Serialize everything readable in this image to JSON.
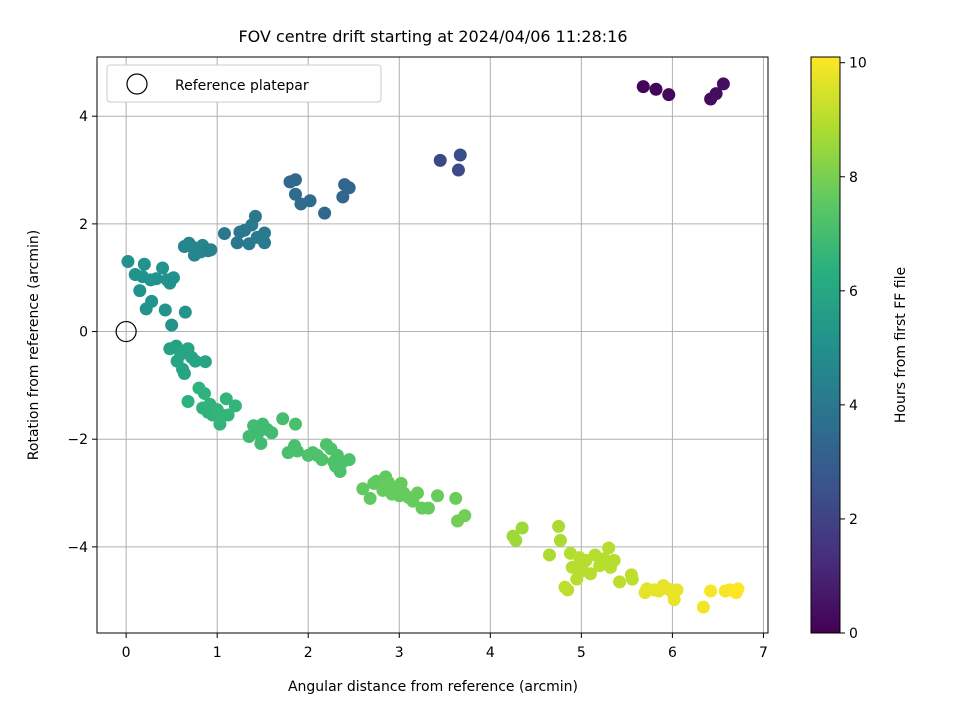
{
  "chart_data": {
    "type": "scatter",
    "title": "FOV centre drift starting at 2024/04/06 11:28:16",
    "xlabel": "Angular distance from reference (arcmin)",
    "ylabel": "Rotation from reference (arcmin)",
    "xlim": [
      -0.32,
      7.05
    ],
    "ylim": [
      -5.6,
      5.1
    ],
    "xticks": [
      "0",
      "1",
      "2",
      "3",
      "4",
      "5",
      "6",
      "7"
    ],
    "yticks": [
      "−4",
      "−2",
      "0",
      "2",
      "4"
    ],
    "grid": true,
    "legend": {
      "position": "top-left",
      "entries": [
        "Reference platepar"
      ]
    },
    "reference_point": {
      "x": 0,
      "y": 0
    },
    "colorbar": {
      "label": "Hours from first FF file",
      "range": [
        0,
        10.1
      ],
      "ticks": [
        "0",
        "2",
        "4",
        "6",
        "8",
        "10"
      ],
      "colormap": "viridis"
    },
    "points": [
      {
        "x": 5.68,
        "y": 4.55,
        "c": 0.1
      },
      {
        "x": 5.82,
        "y": 4.5,
        "c": 0.15
      },
      {
        "x": 5.96,
        "y": 4.4,
        "c": 0.2
      },
      {
        "x": 6.42,
        "y": 4.32,
        "c": 0.3
      },
      {
        "x": 6.48,
        "y": 4.42,
        "c": 0.35
      },
      {
        "x": 6.56,
        "y": 4.6,
        "c": 0.4
      },
      {
        "x": 3.45,
        "y": 3.18,
        "c": 2.2
      },
      {
        "x": 3.65,
        "y": 3.0,
        "c": 2.3
      },
      {
        "x": 3.67,
        "y": 3.28,
        "c": 2.4
      },
      {
        "x": 1.8,
        "y": 2.78,
        "c": 3.4
      },
      {
        "x": 1.86,
        "y": 2.82,
        "c": 3.4
      },
      {
        "x": 1.86,
        "y": 2.55,
        "c": 3.5
      },
      {
        "x": 1.92,
        "y": 2.37,
        "c": 3.5
      },
      {
        "x": 2.02,
        "y": 2.43,
        "c": 3.5
      },
      {
        "x": 2.18,
        "y": 2.2,
        "c": 3.4
      },
      {
        "x": 2.38,
        "y": 2.5,
        "c": 3.3
      },
      {
        "x": 2.4,
        "y": 2.73,
        "c": 3.3
      },
      {
        "x": 2.45,
        "y": 2.67,
        "c": 3.3
      },
      {
        "x": 1.08,
        "y": 1.82,
        "c": 4.0
      },
      {
        "x": 1.22,
        "y": 1.65,
        "c": 4.0
      },
      {
        "x": 1.25,
        "y": 1.85,
        "c": 4.0
      },
      {
        "x": 1.3,
        "y": 1.88,
        "c": 4.0
      },
      {
        "x": 1.35,
        "y": 1.63,
        "c": 4.1
      },
      {
        "x": 1.38,
        "y": 1.98,
        "c": 4.1
      },
      {
        "x": 1.42,
        "y": 2.14,
        "c": 4.0
      },
      {
        "x": 1.44,
        "y": 1.75,
        "c": 4.1
      },
      {
        "x": 1.52,
        "y": 1.83,
        "c": 4.1
      },
      {
        "x": 1.52,
        "y": 1.65,
        "c": 4.1
      },
      {
        "x": 0.64,
        "y": 1.58,
        "c": 4.6
      },
      {
        "x": 0.69,
        "y": 1.64,
        "c": 4.6
      },
      {
        "x": 0.72,
        "y": 1.58,
        "c": 4.6
      },
      {
        "x": 0.75,
        "y": 1.42,
        "c": 4.6
      },
      {
        "x": 0.8,
        "y": 1.55,
        "c": 4.6
      },
      {
        "x": 0.82,
        "y": 1.48,
        "c": 4.6
      },
      {
        "x": 0.84,
        "y": 1.6,
        "c": 4.6
      },
      {
        "x": 0.9,
        "y": 1.5,
        "c": 4.5
      },
      {
        "x": 0.93,
        "y": 1.52,
        "c": 4.5
      },
      {
        "x": 0.02,
        "y": 1.3,
        "c": 5.1
      },
      {
        "x": 0.1,
        "y": 1.06,
        "c": 5.1
      },
      {
        "x": 0.15,
        "y": 0.76,
        "c": 5.1
      },
      {
        "x": 0.18,
        "y": 1.02,
        "c": 5.1
      },
      {
        "x": 0.2,
        "y": 1.25,
        "c": 5.1
      },
      {
        "x": 0.22,
        "y": 0.42,
        "c": 5.2
      },
      {
        "x": 0.27,
        "y": 0.96,
        "c": 5.1
      },
      {
        "x": 0.28,
        "y": 0.56,
        "c": 5.2
      },
      {
        "x": 0.33,
        "y": 0.98,
        "c": 5.1
      },
      {
        "x": 0.4,
        "y": 1.18,
        "c": 5.1
      },
      {
        "x": 0.43,
        "y": 0.4,
        "c": 5.2
      },
      {
        "x": 0.45,
        "y": 0.96,
        "c": 5.1
      },
      {
        "x": 0.48,
        "y": 0.9,
        "c": 5.1
      },
      {
        "x": 0.5,
        "y": 0.12,
        "c": 5.2
      },
      {
        "x": 0.52,
        "y": 1.0,
        "c": 5.1
      },
      {
        "x": 0.65,
        "y": 0.36,
        "c": 5.2
      },
      {
        "x": 0.48,
        "y": -0.32,
        "c": 5.8
      },
      {
        "x": 0.55,
        "y": -0.27,
        "c": 5.8
      },
      {
        "x": 0.56,
        "y": -0.55,
        "c": 5.9
      },
      {
        "x": 0.6,
        "y": -0.42,
        "c": 5.9
      },
      {
        "x": 0.62,
        "y": -0.7,
        "c": 5.9
      },
      {
        "x": 0.64,
        "y": -0.78,
        "c": 5.9
      },
      {
        "x": 0.68,
        "y": -0.32,
        "c": 5.9
      },
      {
        "x": 0.72,
        "y": -0.48,
        "c": 5.9
      },
      {
        "x": 0.76,
        "y": -0.55,
        "c": 5.9
      },
      {
        "x": 0.87,
        "y": -0.56,
        "c": 5.9
      },
      {
        "x": 0.68,
        "y": -1.3,
        "c": 6.4
      },
      {
        "x": 0.8,
        "y": -1.05,
        "c": 6.5
      },
      {
        "x": 0.84,
        "y": -1.42,
        "c": 6.5
      },
      {
        "x": 0.86,
        "y": -1.15,
        "c": 6.5
      },
      {
        "x": 0.9,
        "y": -1.5,
        "c": 6.5
      },
      {
        "x": 0.92,
        "y": -1.35,
        "c": 6.5
      },
      {
        "x": 0.95,
        "y": -1.55,
        "c": 6.5
      },
      {
        "x": 1.0,
        "y": -1.45,
        "c": 6.6
      },
      {
        "x": 1.03,
        "y": -1.72,
        "c": 6.6
      },
      {
        "x": 1.05,
        "y": -1.55,
        "c": 6.6
      },
      {
        "x": 1.1,
        "y": -1.25,
        "c": 6.6
      },
      {
        "x": 1.12,
        "y": -1.55,
        "c": 6.6
      },
      {
        "x": 1.2,
        "y": -1.38,
        "c": 6.6
      },
      {
        "x": 1.35,
        "y": -1.95,
        "c": 6.9
      },
      {
        "x": 1.4,
        "y": -1.75,
        "c": 6.9
      },
      {
        "x": 1.45,
        "y": -1.88,
        "c": 6.9
      },
      {
        "x": 1.48,
        "y": -2.08,
        "c": 6.9
      },
      {
        "x": 1.5,
        "y": -1.72,
        "c": 6.9
      },
      {
        "x": 1.55,
        "y": -1.82,
        "c": 6.9
      },
      {
        "x": 1.6,
        "y": -1.88,
        "c": 6.9
      },
      {
        "x": 1.72,
        "y": -1.62,
        "c": 7.0
      },
      {
        "x": 1.78,
        "y": -2.25,
        "c": 7.1
      },
      {
        "x": 1.85,
        "y": -2.12,
        "c": 7.1
      },
      {
        "x": 1.86,
        "y": -1.72,
        "c": 7.1
      },
      {
        "x": 1.88,
        "y": -2.22,
        "c": 7.1
      },
      {
        "x": 2.0,
        "y": -2.3,
        "c": 7.2
      },
      {
        "x": 2.05,
        "y": -2.25,
        "c": 7.2
      },
      {
        "x": 2.1,
        "y": -2.3,
        "c": 7.2
      },
      {
        "x": 2.15,
        "y": -2.38,
        "c": 7.2
      },
      {
        "x": 2.2,
        "y": -2.1,
        "c": 7.2
      },
      {
        "x": 2.25,
        "y": -2.18,
        "c": 7.2
      },
      {
        "x": 2.28,
        "y": -2.42,
        "c": 7.2
      },
      {
        "x": 2.3,
        "y": -2.5,
        "c": 7.2
      },
      {
        "x": 2.32,
        "y": -2.3,
        "c": 7.2
      },
      {
        "x": 2.35,
        "y": -2.6,
        "c": 7.2
      },
      {
        "x": 2.38,
        "y": -2.42,
        "c": 7.2
      },
      {
        "x": 2.45,
        "y": -2.38,
        "c": 7.2
      },
      {
        "x": 2.6,
        "y": -2.92,
        "c": 7.6
      },
      {
        "x": 2.68,
        "y": -3.1,
        "c": 7.6
      },
      {
        "x": 2.72,
        "y": -2.82,
        "c": 7.6
      },
      {
        "x": 2.75,
        "y": -2.78,
        "c": 7.6
      },
      {
        "x": 2.8,
        "y": -2.85,
        "c": 7.6
      },
      {
        "x": 2.82,
        "y": -2.95,
        "c": 7.7
      },
      {
        "x": 2.85,
        "y": -2.7,
        "c": 7.6
      },
      {
        "x": 2.88,
        "y": -2.8,
        "c": 7.7
      },
      {
        "x": 2.9,
        "y": -2.88,
        "c": 7.7
      },
      {
        "x": 2.92,
        "y": -3.02,
        "c": 7.7
      },
      {
        "x": 2.95,
        "y": -2.9,
        "c": 7.7
      },
      {
        "x": 3.0,
        "y": -3.05,
        "c": 7.7
      },
      {
        "x": 3.02,
        "y": -2.82,
        "c": 7.7
      },
      {
        "x": 3.05,
        "y": -3.0,
        "c": 7.7
      },
      {
        "x": 3.1,
        "y": -3.08,
        "c": 7.7
      },
      {
        "x": 3.15,
        "y": -3.15,
        "c": 7.7
      },
      {
        "x": 3.2,
        "y": -3.0,
        "c": 7.7
      },
      {
        "x": 3.25,
        "y": -3.28,
        "c": 7.7
      },
      {
        "x": 3.32,
        "y": -3.28,
        "c": 7.7
      },
      {
        "x": 3.42,
        "y": -3.05,
        "c": 7.7
      },
      {
        "x": 3.62,
        "y": -3.1,
        "c": 7.8
      },
      {
        "x": 3.64,
        "y": -3.52,
        "c": 7.9
      },
      {
        "x": 3.72,
        "y": -3.42,
        "c": 7.9
      },
      {
        "x": 4.25,
        "y": -3.8,
        "c": 8.6
      },
      {
        "x": 4.28,
        "y": -3.88,
        "c": 8.6
      },
      {
        "x": 4.35,
        "y": -3.65,
        "c": 8.6
      },
      {
        "x": 4.65,
        "y": -4.15,
        "c": 8.8
      },
      {
        "x": 4.75,
        "y": -3.62,
        "c": 8.8
      },
      {
        "x": 4.77,
        "y": -3.88,
        "c": 8.8
      },
      {
        "x": 4.82,
        "y": -4.75,
        "c": 9.1
      },
      {
        "x": 4.85,
        "y": -4.8,
        "c": 9.1
      },
      {
        "x": 4.88,
        "y": -4.12,
        "c": 8.9
      },
      {
        "x": 4.9,
        "y": -4.38,
        "c": 9.0
      },
      {
        "x": 4.95,
        "y": -4.6,
        "c": 9.0
      },
      {
        "x": 4.98,
        "y": -4.2,
        "c": 9.0
      },
      {
        "x": 5.0,
        "y": -4.45,
        "c": 9.0
      },
      {
        "x": 5.02,
        "y": -4.3,
        "c": 9.0
      },
      {
        "x": 5.05,
        "y": -4.25,
        "c": 9.0
      },
      {
        "x": 5.1,
        "y": -4.5,
        "c": 9.0
      },
      {
        "x": 5.15,
        "y": -4.15,
        "c": 9.0
      },
      {
        "x": 5.2,
        "y": -4.35,
        "c": 9.0
      },
      {
        "x": 5.25,
        "y": -4.22,
        "c": 9.0
      },
      {
        "x": 5.3,
        "y": -4.02,
        "c": 9.0
      },
      {
        "x": 5.32,
        "y": -4.38,
        "c": 9.0
      },
      {
        "x": 5.36,
        "y": -4.25,
        "c": 9.0
      },
      {
        "x": 5.42,
        "y": -4.65,
        "c": 9.1
      },
      {
        "x": 5.55,
        "y": -4.52,
        "c": 9.1
      },
      {
        "x": 5.56,
        "y": -4.6,
        "c": 9.1
      },
      {
        "x": 5.7,
        "y": -4.85,
        "c": 9.7
      },
      {
        "x": 5.72,
        "y": -4.78,
        "c": 9.7
      },
      {
        "x": 5.8,
        "y": -4.8,
        "c": 9.7
      },
      {
        "x": 5.85,
        "y": -4.82,
        "c": 9.7
      },
      {
        "x": 5.9,
        "y": -4.72,
        "c": 9.7
      },
      {
        "x": 5.95,
        "y": -4.78,
        "c": 9.8
      },
      {
        "x": 6.0,
        "y": -4.85,
        "c": 9.8
      },
      {
        "x": 6.02,
        "y": -4.98,
        "c": 9.8
      },
      {
        "x": 6.05,
        "y": -4.8,
        "c": 9.8
      },
      {
        "x": 6.34,
        "y": -5.12,
        "c": 9.9
      },
      {
        "x": 6.42,
        "y": -4.82,
        "c": 10.0
      },
      {
        "x": 6.58,
        "y": -4.82,
        "c": 10.0
      },
      {
        "x": 6.63,
        "y": -4.8,
        "c": 10.0
      },
      {
        "x": 6.7,
        "y": -4.85,
        "c": 10.1
      },
      {
        "x": 6.72,
        "y": -4.78,
        "c": 10.1
      }
    ]
  }
}
